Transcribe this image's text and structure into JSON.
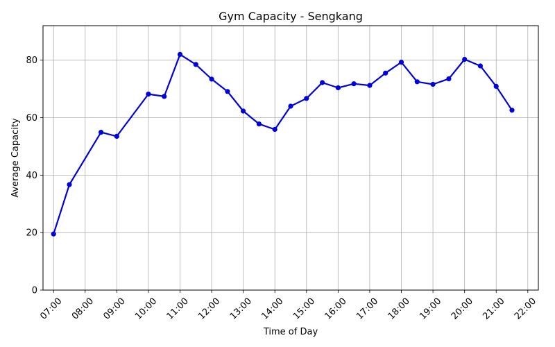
{
  "chart_data": {
    "type": "line",
    "title": "Gym Capacity - Sengkang",
    "xlabel": "Time of Day",
    "ylabel": "Average Capacity",
    "x_ticks": [
      "07:00",
      "08:00",
      "09:00",
      "10:00",
      "11:00",
      "12:00",
      "13:00",
      "14:00",
      "15:00",
      "16:00",
      "17:00",
      "18:00",
      "19:00",
      "20:00",
      "21:00",
      "22:00"
    ],
    "y_ticks": [
      0,
      20,
      40,
      60,
      80
    ],
    "xlim": [
      "06:40",
      "22:20"
    ],
    "ylim": [
      0,
      92
    ],
    "grid": true,
    "series": [
      {
        "color": "#0000dd",
        "marker": "circle",
        "points": [
          {
            "x": "07:00",
            "y": 19.5
          },
          {
            "x": "07:30",
            "y": 36.7
          },
          {
            "x": "08:30",
            "y": 54.9
          },
          {
            "x": "09:00",
            "y": 53.5
          },
          {
            "x": "10:00",
            "y": 68.2
          },
          {
            "x": "10:30",
            "y": 67.4
          },
          {
            "x": "11:00",
            "y": 82.0
          },
          {
            "x": "11:30",
            "y": 78.5
          },
          {
            "x": "12:00",
            "y": 73.4
          },
          {
            "x": "12:30",
            "y": 69.1
          },
          {
            "x": "13:00",
            "y": 62.3
          },
          {
            "x": "13:30",
            "y": 57.8
          },
          {
            "x": "14:00",
            "y": 55.9
          },
          {
            "x": "14:30",
            "y": 64.0
          },
          {
            "x": "15:00",
            "y": 66.7
          },
          {
            "x": "15:30",
            "y": 72.2
          },
          {
            "x": "16:00",
            "y": 70.4
          },
          {
            "x": "16:30",
            "y": 71.8
          },
          {
            "x": "17:00",
            "y": 71.2
          },
          {
            "x": "17:30",
            "y": 75.5
          },
          {
            "x": "18:00",
            "y": 79.3
          },
          {
            "x": "18:30",
            "y": 72.5
          },
          {
            "x": "19:00",
            "y": 71.6
          },
          {
            "x": "19:30",
            "y": 73.5
          },
          {
            "x": "20:00",
            "y": 80.3
          },
          {
            "x": "20:30",
            "y": 78.0
          },
          {
            "x": "21:00",
            "y": 70.9
          },
          {
            "x": "21:30",
            "y": 62.6
          }
        ]
      }
    ]
  }
}
